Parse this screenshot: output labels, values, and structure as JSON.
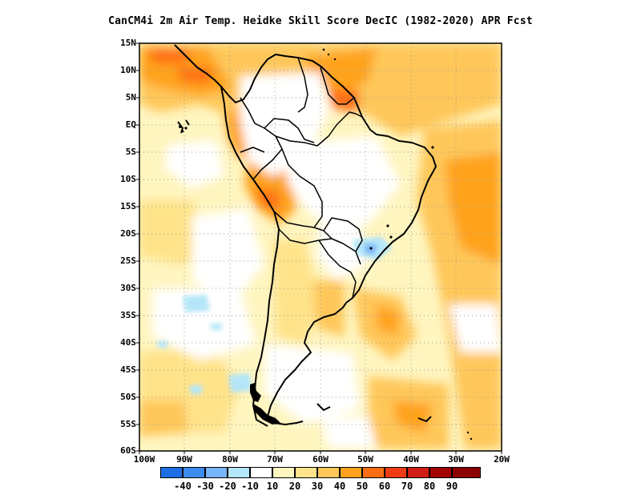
{
  "title": "CanCM4i  2m Air Temp. Heidke Skill Score DecIC (1982-2020) APR Fcst",
  "y_ticks": [
    "15N",
    "10N",
    "5N",
    "EQ",
    "5S",
    "10S",
    "15S",
    "20S",
    "25S",
    "30S",
    "35S",
    "40S",
    "45S",
    "50S",
    "55S",
    "60S"
  ],
  "x_ticks": [
    "100W",
    "90W",
    "80W",
    "70W",
    "60W",
    "50W",
    "40W",
    "30W",
    "20W"
  ],
  "colorbar": {
    "labels": [
      "-40",
      "-30",
      "-20",
      "-10",
      "10",
      "20",
      "30",
      "40",
      "50",
      "60",
      "70",
      "80",
      "90"
    ],
    "colors": [
      "#1e6fe6",
      "#3c8cf0",
      "#78b4f8",
      "#b4e6f8",
      "#ffffff",
      "#fff5bf",
      "#ffe38a",
      "#ffc75a",
      "#ffa31f",
      "#ff6e14",
      "#f03c14",
      "#d01e14",
      "#a00000"
    ]
  },
  "map": {
    "region": "South America",
    "extent": {
      "lon": [
        -100,
        -20
      ],
      "lat": [
        -60,
        15
      ]
    },
    "variable": "2m Air Temp. Heidke Skill Score",
    "colors": {
      "land_outline": "#000000",
      "grid": "#9a9a9a"
    }
  }
}
